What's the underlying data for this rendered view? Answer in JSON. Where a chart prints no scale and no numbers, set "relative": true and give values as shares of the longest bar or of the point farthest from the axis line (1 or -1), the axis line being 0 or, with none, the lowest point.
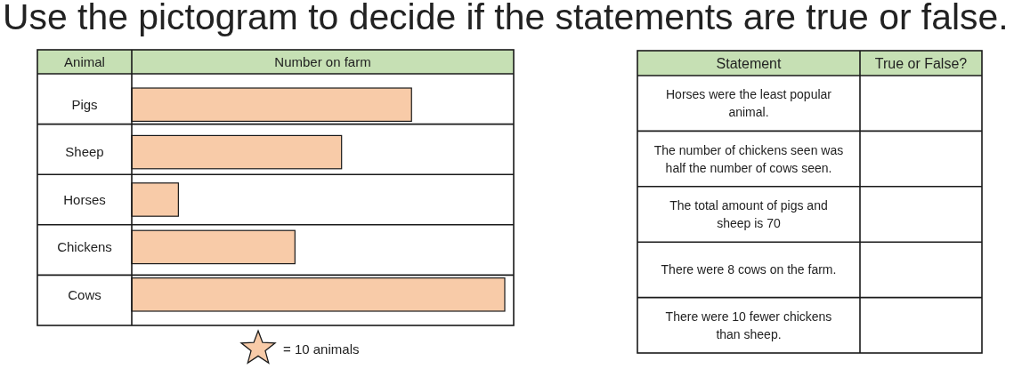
{
  "chart_data": [
    {
      "type": "bar",
      "orientation": "horizontal",
      "relative": true,
      "title": "Use the pictogram to decide if the statements are true or false.",
      "xlabel": "Number on farm",
      "ylabel": "Animal",
      "categories": [
        "Pigs",
        "Sheep",
        "Horses",
        "Chickens",
        "Cows"
      ],
      "values": [
        0.75,
        0.5625,
        0.125,
        0.4375,
        1
      ],
      "color": "#f8cba8",
      "annotations": [
        "= 10 animals"
      ]
    },
    {
      "type": "other",
      "categories": [
        "Statement",
        "True or False?"
      ],
      "annotations": [
        "Horses were the least popular animal.",
        "The number of chickens seen was half the number of cows seen.",
        "The total amount of pigs and sheep is 70",
        "There were 8 cows on the farm.",
        "There were 10 fewer chickens than sheep."
      ]
    }
  ]
}
